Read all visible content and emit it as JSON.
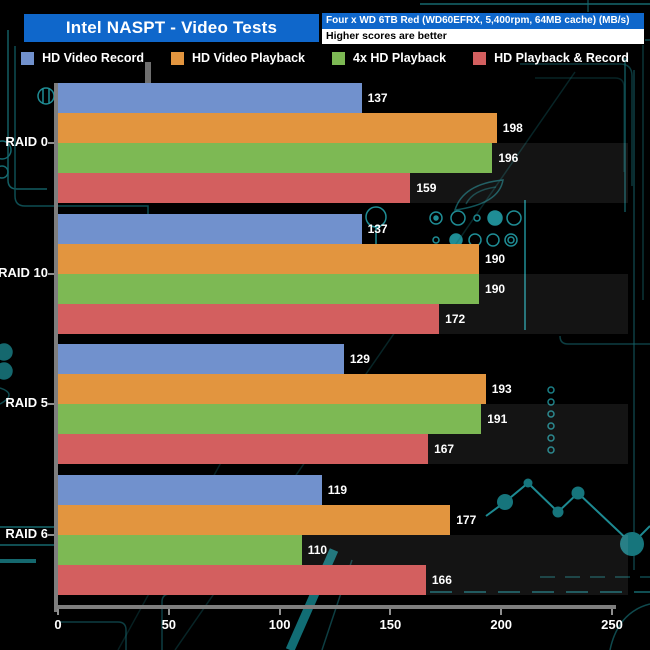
{
  "header": {
    "title": "Intel NASPT - Video Tests",
    "config": "Four x WD 6TB Red (WD60EFRX, 5,400rpm, 64MB cache) (MB/s)",
    "note": "Higher scores are better"
  },
  "chart_data": {
    "type": "bar",
    "orientation": "horizontal",
    "title": "Intel NASPT - Video Tests",
    "subtitle": "Four x WD 6TB Red (WD60EFRX, 5,400rpm, 64MB cache) (MB/s)",
    "note": "Higher scores are better",
    "categories": [
      "RAID 0",
      "RAID 10",
      "RAID 5",
      "RAID 6"
    ],
    "series": [
      {
        "name": "HD Video Record",
        "color": "#7191cd",
        "values": [
          137,
          137,
          129,
          119
        ]
      },
      {
        "name": "HD Video Playback",
        "color": "#e2953f",
        "values": [
          198,
          190,
          193,
          177
        ]
      },
      {
        "name": "4x HD Playback",
        "color": "#7db954",
        "values": [
          196,
          190,
          191,
          110
        ]
      },
      {
        "name": "HD Playback & Record",
        "color": "#d35f5f",
        "values": [
          159,
          172,
          167,
          166
        ]
      }
    ],
    "xlabel": "",
    "ylabel": "",
    "xlim": [
      0,
      250
    ],
    "x_ticks": [
      0,
      50,
      100,
      150,
      200,
      250
    ],
    "value_labels_shown": true,
    "legend_position": "top",
    "grid": false
  },
  "colors": {
    "header_blue": "#0f67cb",
    "axis_gray": "#7e7e7e",
    "label_text": "#ffffff",
    "background": "#000000",
    "circuit_teal": "#15686e",
    "circuit_teal_bright": "#1f8d95"
  }
}
